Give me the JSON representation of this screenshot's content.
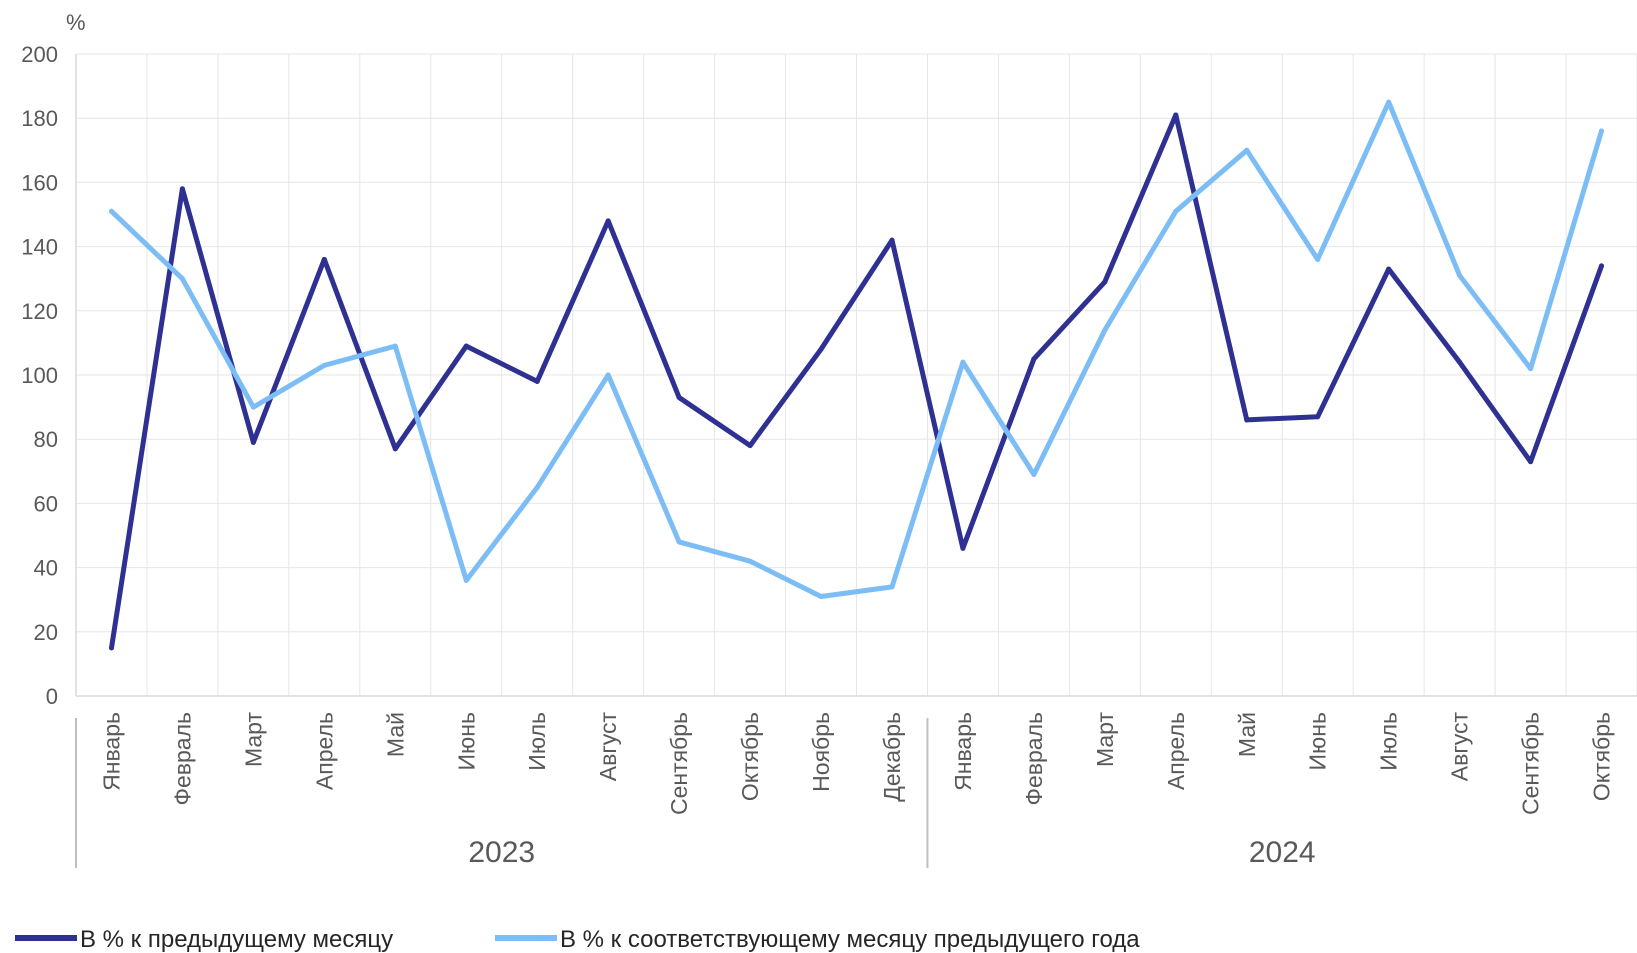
{
  "chart_data": {
    "type": "line",
    "ylabel": "%",
    "ylim": [
      0,
      200
    ],
    "yticks": [
      0,
      20,
      40,
      60,
      80,
      100,
      120,
      140,
      160,
      180,
      200
    ],
    "grid": true,
    "legend_position": "bottom-left",
    "categories": [
      "Январь",
      "Февраль",
      "Март",
      "Апрель",
      "Май",
      "Июнь",
      "Июль",
      "Август",
      "Сентябрь",
      "Октябрь",
      "Ноябрь",
      "Декабрь",
      "Январь",
      "Февраль",
      "Март",
      "Апрель",
      "Май",
      "Июнь",
      "Июль",
      "Август",
      "Сентябрь",
      "Октябрь"
    ],
    "groups": [
      {
        "label": "2023",
        "count": 12
      },
      {
        "label": "2024",
        "count": 10
      }
    ],
    "series": [
      {
        "name": "В % к предыдущему месяцу",
        "color": "#2e3192",
        "values": [
          15,
          158,
          79,
          136,
          77,
          109,
          98,
          148,
          93,
          78,
          108,
          142,
          46,
          105,
          129,
          181,
          86,
          87,
          133,
          104,
          73,
          134
        ]
      },
      {
        "name": "В % к соответствующему месяцу предыдущего года",
        "color": "#7dbdf5",
        "values": [
          151,
          130,
          90,
          103,
          109,
          36,
          65,
          100,
          48,
          42,
          31,
          34,
          104,
          69,
          114,
          151,
          170,
          136,
          185,
          131,
          102,
          176
        ]
      }
    ]
  }
}
